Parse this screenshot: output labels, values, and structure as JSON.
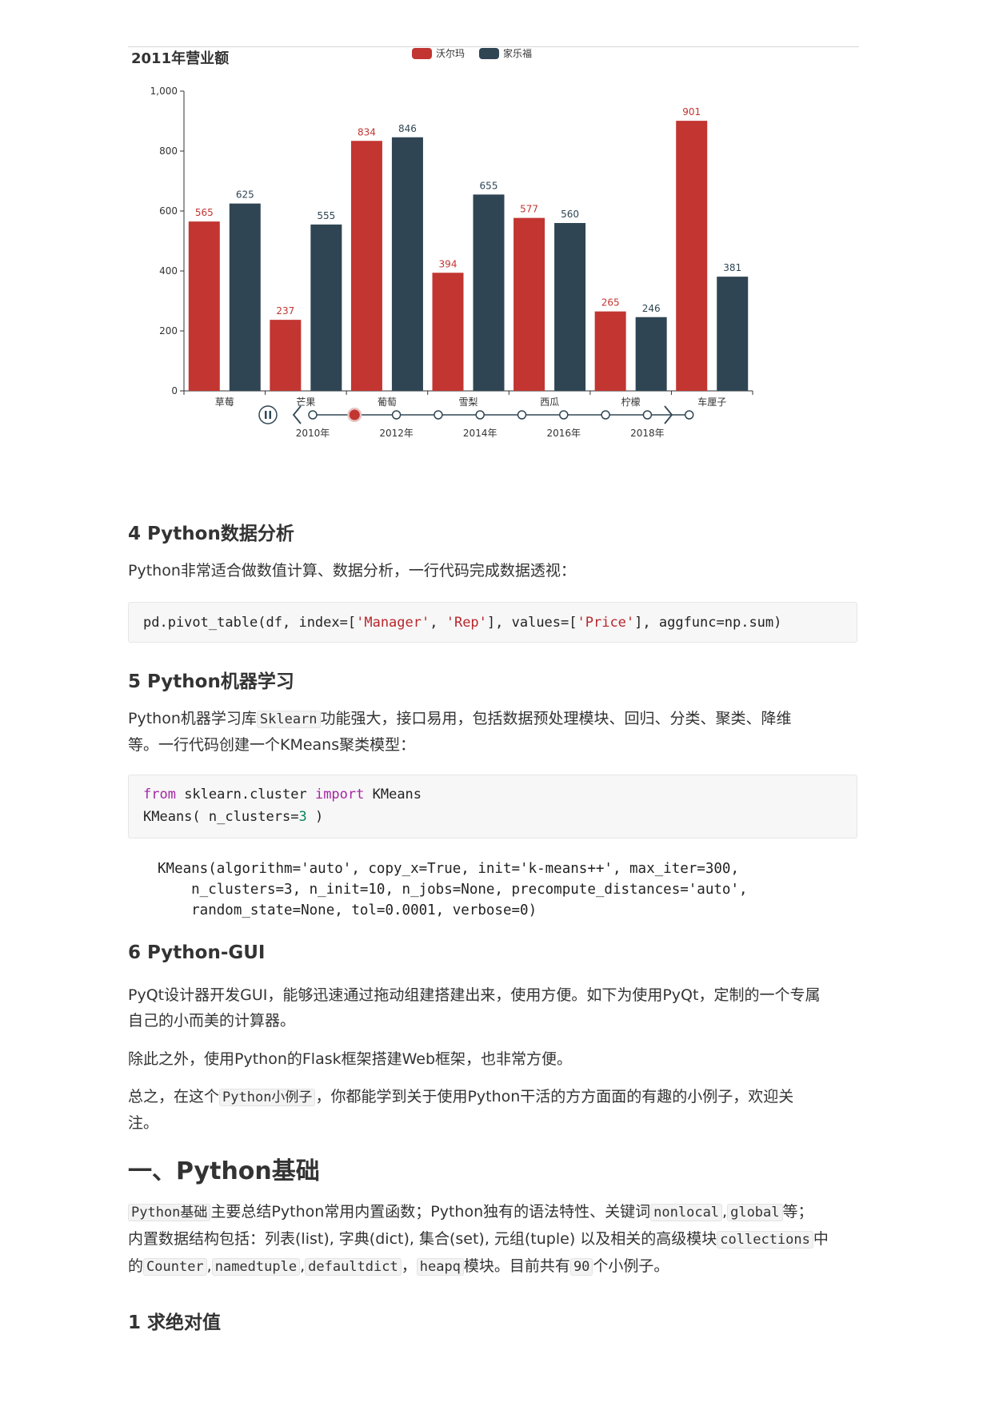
{
  "chart_data": {
    "type": "bar",
    "title": "2011年营业额",
    "categories": [
      "草莓",
      "芒果",
      "葡萄",
      "雪梨",
      "西瓜",
      "柠檬",
      "车厘子"
    ],
    "series": [
      {
        "name": "沃尔玛",
        "color": "#c23531",
        "values": [
          565,
          237,
          834,
          394,
          577,
          265,
          901
        ]
      },
      {
        "name": "家乐福",
        "color": "#2f4554",
        "values": [
          625,
          555,
          846,
          655,
          560,
          246,
          381
        ]
      }
    ],
    "ylim": [
      0,
      1000
    ],
    "yticks": [
      0,
      200,
      400,
      600,
      800,
      1000
    ],
    "ytick_labels": [
      "0",
      "200",
      "400",
      "600",
      "800",
      "1,000"
    ],
    "legend_position": "top-center",
    "timeline": {
      "labels": [
        "2010年",
        "2012年",
        "2014年",
        "2016年",
        "2018年"
      ],
      "points": 10,
      "selected_index": 1,
      "play_icon": "pause-icon",
      "prev_icon": "chevron-left-icon",
      "next_icon": "chevron-right-icon"
    }
  },
  "sec4": {
    "title": "4 Python数据分析",
    "text": "Python非常适合做数值计算、数据分析，一行代码完成数据透视：",
    "code": {
      "p1": "pd.pivot_table(df, index=[",
      "s1": "'Manager'",
      "p2": ", ",
      "s2": "'Rep'",
      "p3": "], values=[",
      "s3": "'Price'",
      "p4": "], aggfunc=np.sum)"
    }
  },
  "sec5": {
    "title": "5 Python机器学习",
    "text_a": "Python机器学习库",
    "code_inline": "Sklearn",
    "text_b": "功能强大，接口易用，包括数据预处理模块、回归、分类、聚类、降维",
    "text_c": "等。一行代码创建一个KMeans聚类模型：",
    "code": {
      "kw_from": "from",
      "mod": " sklearn.cluster ",
      "kw_import": "import",
      "cls": " KMeans",
      "l2a": "KMeans( n_clusters=",
      "l2num": "3",
      "l2b": " )"
    },
    "output_lines": [
      "KMeans(algorithm='auto', copy_x=True, init='k-means++', max_iter=300,",
      "    n_clusters=3, n_init=10, n_jobs=None, precompute_distances='auto',",
      "    random_state=None, tol=0.0001, verbose=0)"
    ]
  },
  "sec6": {
    "title": "6 Python-GUI",
    "text1a": "PyQt设计器开发GUI，能够迅速通过拖动组建搭建出来，使用方便。如下为使用PyQt，定制的一个专属",
    "text1b": "自己的小而美的计算器。",
    "text2": "除此之外，使用Python的Flask框架搭建Web框架，也非常方便。",
    "text3a": "总之，在这个",
    "text3code": "Python小例子",
    "text3b": "，你都能学到关于使用Python干活的方方面面的有趣的小例子，欢迎关",
    "text3c": "注。"
  },
  "part1": {
    "title": "一、Python基础",
    "c1": "Python基础",
    "t1": "主要总结Python常用内置函数；Python独有的语法特性、关键词",
    "c2": "nonlocal",
    "t2": ",",
    "c3": "global",
    "t3": "等；",
    "t4": "内置数据结构包括：列表(list), 字典(dict), 集合(set), 元组(tuple) 以及相关的高级模块",
    "c4": "collections",
    "t5": "中",
    "t6": "的",
    "c5": "Counter",
    "t7": ",",
    "c6": "namedtuple",
    "t8": ",",
    "c7": "defaultdict",
    "t9": "，",
    "c8": "heapq",
    "t10": "模块。目前共有",
    "c9": "90",
    "t11": "个小例子。"
  },
  "sub1": {
    "title": "1 求绝对值"
  }
}
